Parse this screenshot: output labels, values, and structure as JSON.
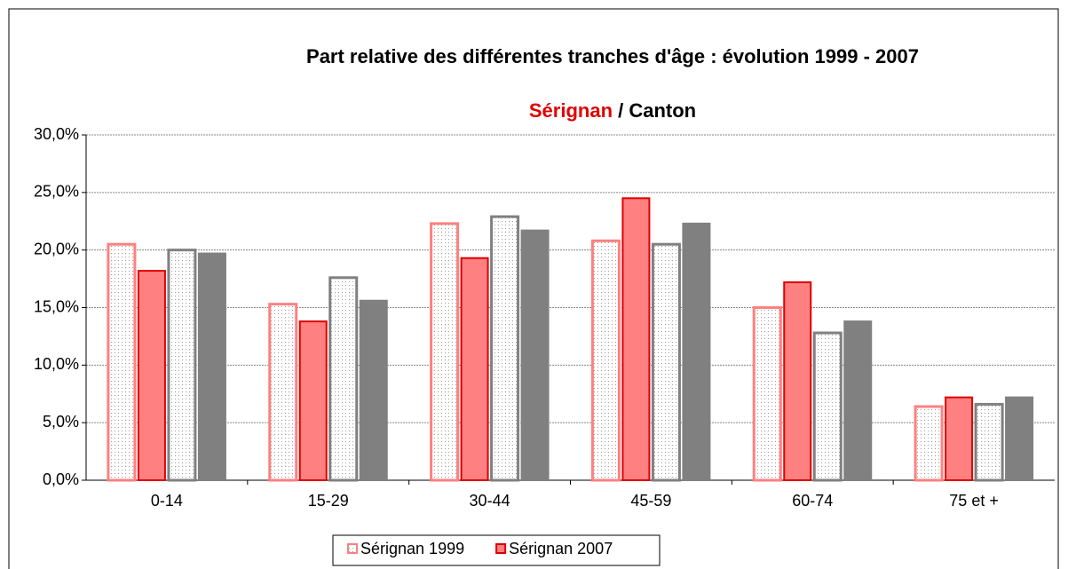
{
  "chart_data": {
    "type": "bar",
    "title": "Part relative des différentes tranches d'âge : évolution 1999 - 2007",
    "subtitle": [
      "Sérignan",
      " / Canton"
    ],
    "categories": [
      "0-14",
      "15-29",
      "30-44",
      "45-59",
      "60-74",
      "75 et +"
    ],
    "series": [
      {
        "name": "Sérignan 1999",
        "color": "#ff8080",
        "pattern": "dots",
        "values": [
          20.5,
          15.3,
          22.3,
          20.8,
          15.0,
          6.4
        ]
      },
      {
        "name": "Sérignan 2007",
        "color": "#ff8080",
        "stroke": "#e00000",
        "pattern": "solid",
        "values": [
          18.2,
          13.8,
          19.3,
          24.5,
          17.2,
          7.2
        ]
      },
      {
        "color": "#808080",
        "pattern": "dots",
        "values": [
          20.0,
          17.6,
          22.9,
          20.5,
          12.8,
          6.6
        ]
      },
      {
        "color": "#808080",
        "pattern": "solid",
        "values": [
          19.7,
          15.6,
          21.7,
          22.3,
          13.8,
          7.2
        ]
      }
    ],
    "ylim": [
      0,
      30
    ],
    "yticks": [
      {
        "value": 0,
        "label": "0,0%"
      },
      {
        "value": 5,
        "label": "5,0%"
      },
      {
        "value": 10,
        "label": "10,0%"
      },
      {
        "value": 15,
        "label": "15,0%"
      },
      {
        "value": 20,
        "label": "20,0%"
      },
      {
        "value": 25,
        "label": "25,0%"
      },
      {
        "value": 30,
        "label": "30,0%"
      }
    ],
    "grid": true,
    "legend": "bottom"
  }
}
